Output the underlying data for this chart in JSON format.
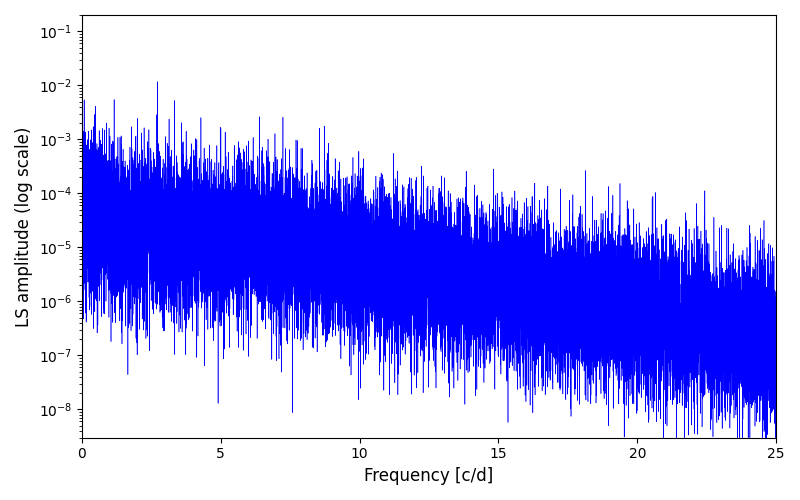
{
  "title": "",
  "xlabel": "Frequency [c/d]",
  "ylabel": "LS amplitude (log scale)",
  "xlim": [
    0,
    25
  ],
  "ylim": [
    3e-09,
    0.2
  ],
  "line_color": "#0000ff",
  "background_color": "#ffffff",
  "freq_min": 0.0,
  "freq_max": 25.0,
  "n_points": 20000,
  "figsize": [
    8.0,
    5.0
  ],
  "dpi": 100
}
